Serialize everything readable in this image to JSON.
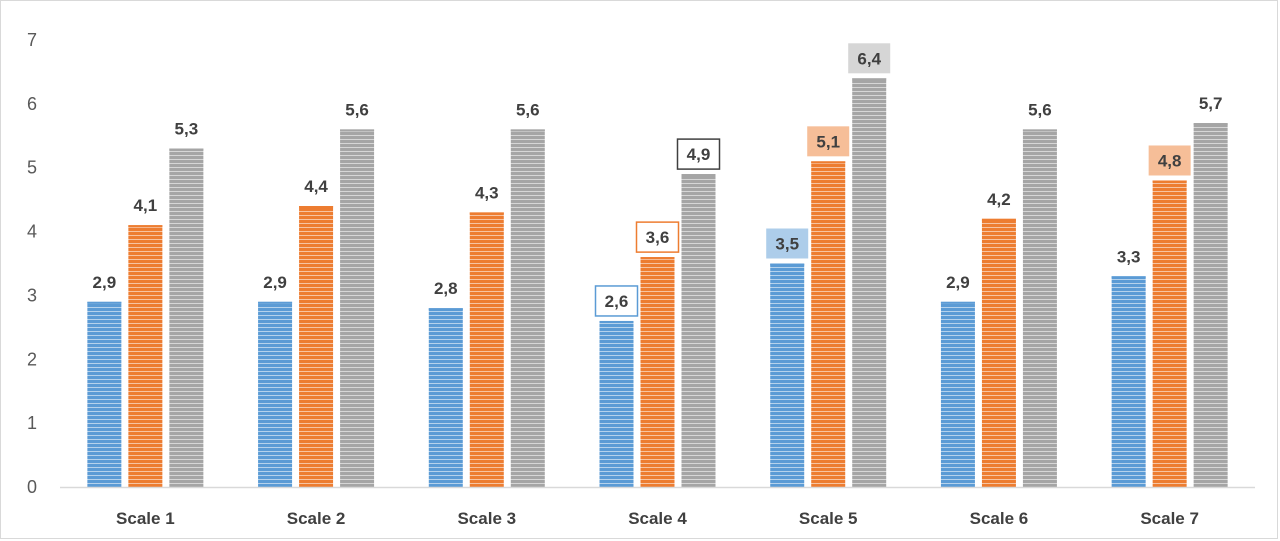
{
  "chart_data": {
    "type": "bar",
    "categories": [
      "Scale 1",
      "Scale 2",
      "Scale 3",
      "Scale 4",
      "Scale 5",
      "Scale 6",
      "Scale 7"
    ],
    "series": [
      {
        "values": [
          2.9,
          2.9,
          2.8,
          2.6,
          3.5,
          2.9,
          3.3
        ],
        "color": "#5b9bd5",
        "labels": [
          "2,9",
          "2,9",
          "2,8",
          "2,6",
          "3,5",
          "2,9",
          "3,3"
        ]
      },
      {
        "values": [
          4.1,
          4.4,
          4.3,
          3.6,
          5.1,
          4.2,
          4.8
        ],
        "color": "#ed7d31",
        "labels": [
          "4,1",
          "4,4",
          "4,3",
          "3,6",
          "5,1",
          "4,2",
          "4,8"
        ]
      },
      {
        "values": [
          5.3,
          5.6,
          5.6,
          4.9,
          6.4,
          5.6,
          5.7
        ],
        "color": "#a5a5a5",
        "labels": [
          "5,3",
          "5,6",
          "5,6",
          "4,9",
          "6,4",
          "5,6",
          "5,7"
        ]
      }
    ],
    "ylim": [
      0,
      7
    ],
    "yticks": [
      "0",
      "1",
      "2",
      "3",
      "4",
      "5",
      "6",
      "7"
    ],
    "grid": false,
    "legend": "none",
    "title": "",
    "xlabel": "",
    "ylabel": "",
    "highlighted_labels": [
      {
        "category": "Scale 4",
        "series": 0,
        "style": "outline"
      },
      {
        "category": "Scale 4",
        "series": 1,
        "style": "outline"
      },
      {
        "category": "Scale 4",
        "series": 2,
        "style": "outline"
      },
      {
        "category": "Scale 5",
        "series": 0,
        "style": "filled"
      },
      {
        "category": "Scale 5",
        "series": 1,
        "style": "filled"
      },
      {
        "category": "Scale 5",
        "series": 2,
        "style": "filled"
      },
      {
        "category": "Scale 7",
        "series": 1,
        "style": "filled"
      }
    ]
  }
}
